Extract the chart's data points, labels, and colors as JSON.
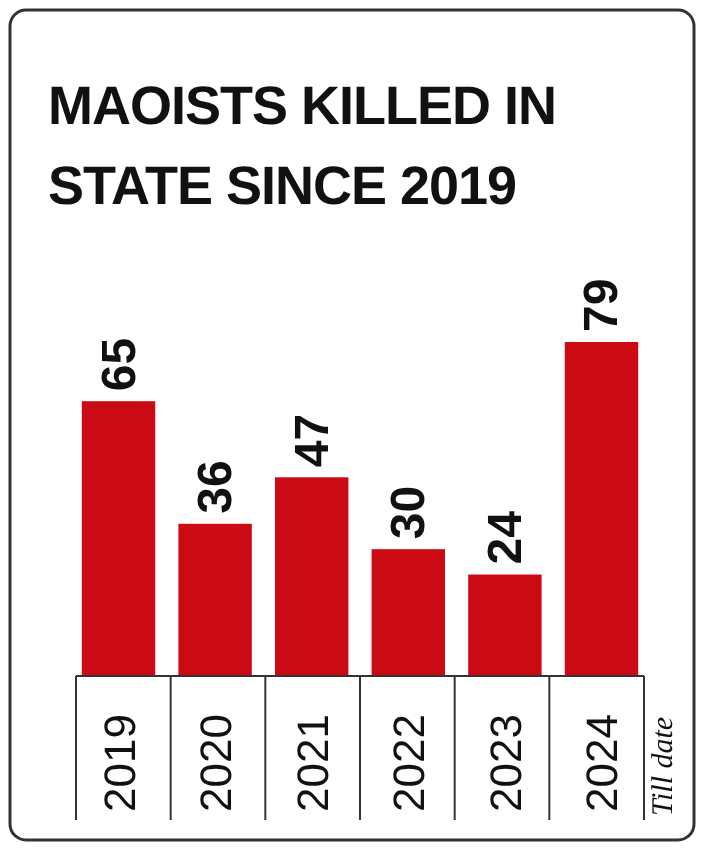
{
  "chart_data": {
    "type": "bar",
    "title": "MAOISTS KILLED IN STATE SINCE 2019",
    "categories": [
      "2019",
      "2020",
      "2021",
      "2022",
      "2023",
      "2024"
    ],
    "values": [
      65,
      36,
      47,
      30,
      24,
      79
    ],
    "color": "#cc0a14",
    "data_labels": true,
    "annotations": [
      "Till date"
    ]
  }
}
